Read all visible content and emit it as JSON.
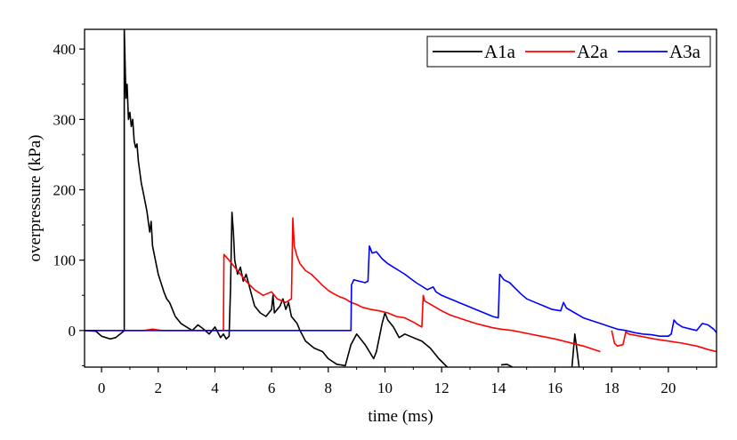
{
  "chart_data": {
    "type": "line",
    "xlabel": "time (ms)",
    "ylabel": "overpressure (kPa)",
    "xlim": [
      -0.6,
      21.7
    ],
    "ylim": [
      -52,
      428
    ],
    "x_ticks": [
      0,
      2,
      4,
      6,
      8,
      10,
      12,
      14,
      16,
      18,
      20
    ],
    "y_ticks": [
      0,
      100,
      200,
      300,
      400
    ],
    "legend_position": "top-right",
    "grid": false,
    "series": [
      {
        "name": "A1a",
        "color": "#000000",
        "points": [
          [
            -0.6,
            0
          ],
          [
            -0.2,
            -1
          ],
          [
            0.0,
            -8
          ],
          [
            0.3,
            -12
          ],
          [
            0.5,
            -10
          ],
          [
            0.75,
            -2
          ],
          [
            0.8,
            0
          ],
          [
            0.8,
            430
          ],
          [
            0.86,
            330
          ],
          [
            0.9,
            350
          ],
          [
            0.95,
            300
          ],
          [
            1.0,
            310
          ],
          [
            1.05,
            290
          ],
          [
            1.1,
            300
          ],
          [
            1.15,
            270
          ],
          [
            1.2,
            260
          ],
          [
            1.25,
            265
          ],
          [
            1.3,
            240
          ],
          [
            1.35,
            225
          ],
          [
            1.4,
            210
          ],
          [
            1.5,
            190
          ],
          [
            1.6,
            170
          ],
          [
            1.7,
            140
          ],
          [
            1.75,
            155
          ],
          [
            1.8,
            120
          ],
          [
            1.9,
            100
          ],
          [
            2.0,
            80
          ],
          [
            2.2,
            55
          ],
          [
            2.3,
            45
          ],
          [
            2.4,
            40
          ],
          [
            2.5,
            30
          ],
          [
            2.6,
            20
          ],
          [
            2.8,
            10
          ],
          [
            3.0,
            5
          ],
          [
            3.2,
            0
          ],
          [
            3.4,
            8
          ],
          [
            3.6,
            2
          ],
          [
            3.8,
            -5
          ],
          [
            4.0,
            5
          ],
          [
            4.2,
            -10
          ],
          [
            4.3,
            -5
          ],
          [
            4.4,
            -12
          ],
          [
            4.5,
            -8
          ],
          [
            4.55,
            60
          ],
          [
            4.6,
            168
          ],
          [
            4.65,
            140
          ],
          [
            4.7,
            100
          ],
          [
            4.8,
            80
          ],
          [
            4.9,
            90
          ],
          [
            5.0,
            70
          ],
          [
            5.1,
            80
          ],
          [
            5.2,
            65
          ],
          [
            5.3,
            50
          ],
          [
            5.4,
            35
          ],
          [
            5.5,
            30
          ],
          [
            5.6,
            25
          ],
          [
            5.8,
            20
          ],
          [
            6.0,
            30
          ],
          [
            6.05,
            50
          ],
          [
            6.1,
            25
          ],
          [
            6.3,
            35
          ],
          [
            6.4,
            45
          ],
          [
            6.5,
            30
          ],
          [
            6.6,
            40
          ],
          [
            6.7,
            20
          ],
          [
            6.8,
            15
          ],
          [
            6.9,
            10
          ],
          [
            7.0,
            0
          ],
          [
            7.2,
            -15
          ],
          [
            7.5,
            -25
          ],
          [
            7.8,
            -30
          ],
          [
            8.0,
            -40
          ],
          [
            8.3,
            -48
          ],
          [
            8.6,
            -50
          ],
          [
            8.8,
            -20
          ],
          [
            9.0,
            -5
          ],
          [
            9.3,
            -20
          ],
          [
            9.6,
            -40
          ],
          [
            9.7,
            -30
          ],
          [
            9.8,
            -10
          ],
          [
            9.9,
            10
          ],
          [
            10.0,
            25
          ],
          [
            10.1,
            15
          ],
          [
            10.3,
            5
          ],
          [
            10.5,
            -10
          ],
          [
            10.7,
            -5
          ],
          [
            11.0,
            -10
          ],
          [
            11.3,
            -15
          ],
          [
            11.6,
            -25
          ],
          [
            11.9,
            -40
          ],
          [
            12.2,
            -52
          ]
        ],
        "extra_segments": [
          [
            [
              14.1,
              -49
            ],
            [
              14.3,
              -48
            ],
            [
              14.5,
              -52
            ]
          ],
          [
            [
              16.6,
              -52
            ],
            [
              16.7,
              -5
            ],
            [
              16.75,
              -20
            ],
            [
              16.85,
              -52
            ]
          ]
        ]
      },
      {
        "name": "A2a",
        "color": "#ff0000",
        "points": [
          [
            -0.6,
            0
          ],
          [
            1.5,
            0
          ],
          [
            1.8,
            2
          ],
          [
            2.1,
            0
          ],
          [
            4.3,
            0
          ],
          [
            4.32,
            108
          ],
          [
            4.5,
            100
          ],
          [
            4.7,
            90
          ],
          [
            4.9,
            80
          ],
          [
            5.1,
            70
          ],
          [
            5.4,
            58
          ],
          [
            5.7,
            50
          ],
          [
            6.0,
            55
          ],
          [
            6.2,
            45
          ],
          [
            6.5,
            40
          ],
          [
            6.7,
            45
          ],
          [
            6.75,
            160
          ],
          [
            6.8,
            120
          ],
          [
            6.9,
            105
          ],
          [
            7.0,
            95
          ],
          [
            7.2,
            85
          ],
          [
            7.4,
            80
          ],
          [
            7.6,
            72
          ],
          [
            7.8,
            64
          ],
          [
            8.0,
            57
          ],
          [
            8.2,
            52
          ],
          [
            8.4,
            48
          ],
          [
            8.6,
            45
          ],
          [
            8.8,
            40
          ],
          [
            9.0,
            37
          ],
          [
            9.2,
            33
          ],
          [
            9.5,
            30
          ],
          [
            9.8,
            28
          ],
          [
            10.1,
            25
          ],
          [
            10.4,
            20
          ],
          [
            10.7,
            18
          ],
          [
            11.0,
            12
          ],
          [
            11.3,
            5
          ],
          [
            11.35,
            50
          ],
          [
            11.4,
            42
          ],
          [
            11.7,
            35
          ],
          [
            12.0,
            28
          ],
          [
            12.3,
            22
          ],
          [
            12.6,
            18
          ],
          [
            12.9,
            14
          ],
          [
            13.2,
            10
          ],
          [
            13.5,
            7
          ],
          [
            13.8,
            4
          ],
          [
            14.1,
            2
          ],
          [
            14.5,
            0
          ],
          [
            15.0,
            -4
          ],
          [
            15.5,
            -8
          ],
          [
            16.0,
            -12
          ],
          [
            16.5,
            -17
          ],
          [
            17.0,
            -22
          ],
          [
            17.6,
            -30
          ]
        ],
        "extra_segments": [
          [
            [
              18.0,
              0
            ],
            [
              18.1,
              -18
            ],
            [
              18.2,
              -22
            ],
            [
              18.4,
              -20
            ],
            [
              18.5,
              -2
            ],
            [
              18.6,
              -5
            ],
            [
              19.0,
              -8
            ],
            [
              19.5,
              -12
            ],
            [
              20.0,
              -15
            ],
            [
              20.5,
              -18
            ],
            [
              21.0,
              -22
            ],
            [
              21.4,
              -27
            ],
            [
              21.7,
              -30
            ]
          ]
        ]
      },
      {
        "name": "A3a",
        "color": "#0000ff",
        "points": [
          [
            -0.6,
            0
          ],
          [
            8.8,
            0
          ],
          [
            8.82,
            65
          ],
          [
            8.9,
            72
          ],
          [
            9.1,
            70
          ],
          [
            9.3,
            68
          ],
          [
            9.4,
            70
          ],
          [
            9.45,
            120
          ],
          [
            9.55,
            110
          ],
          [
            9.7,
            112
          ],
          [
            9.9,
            102
          ],
          [
            10.1,
            95
          ],
          [
            10.3,
            90
          ],
          [
            10.5,
            85
          ],
          [
            10.7,
            80
          ],
          [
            10.9,
            74
          ],
          [
            11.1,
            68
          ],
          [
            11.3,
            63
          ],
          [
            11.5,
            58
          ],
          [
            11.7,
            62
          ],
          [
            11.8,
            55
          ],
          [
            12.0,
            50
          ],
          [
            12.3,
            45
          ],
          [
            12.6,
            40
          ],
          [
            12.9,
            35
          ],
          [
            13.2,
            30
          ],
          [
            13.5,
            25
          ],
          [
            13.8,
            20
          ],
          [
            14.0,
            18
          ],
          [
            14.05,
            80
          ],
          [
            14.2,
            72
          ],
          [
            14.4,
            68
          ],
          [
            14.6,
            60
          ],
          [
            14.8,
            52
          ],
          [
            15.0,
            45
          ],
          [
            15.3,
            40
          ],
          [
            15.6,
            35
          ],
          [
            15.9,
            30
          ],
          [
            16.2,
            28
          ],
          [
            16.3,
            40
          ],
          [
            16.4,
            32
          ],
          [
            16.7,
            25
          ],
          [
            17.0,
            18
          ],
          [
            17.3,
            14
          ],
          [
            17.6,
            10
          ],
          [
            17.9,
            6
          ],
          [
            18.2,
            2
          ],
          [
            18.5,
            0
          ],
          [
            18.8,
            -3
          ],
          [
            19.1,
            -5
          ],
          [
            19.4,
            -6
          ],
          [
            19.7,
            -8
          ],
          [
            20.0,
            -8
          ],
          [
            20.1,
            -5
          ],
          [
            20.2,
            15
          ],
          [
            20.3,
            10
          ],
          [
            20.5,
            5
          ],
          [
            20.8,
            2
          ],
          [
            21.0,
            0
          ],
          [
            21.2,
            10
          ],
          [
            21.4,
            8
          ],
          [
            21.6,
            2
          ],
          [
            21.7,
            -3
          ]
        ]
      }
    ]
  }
}
